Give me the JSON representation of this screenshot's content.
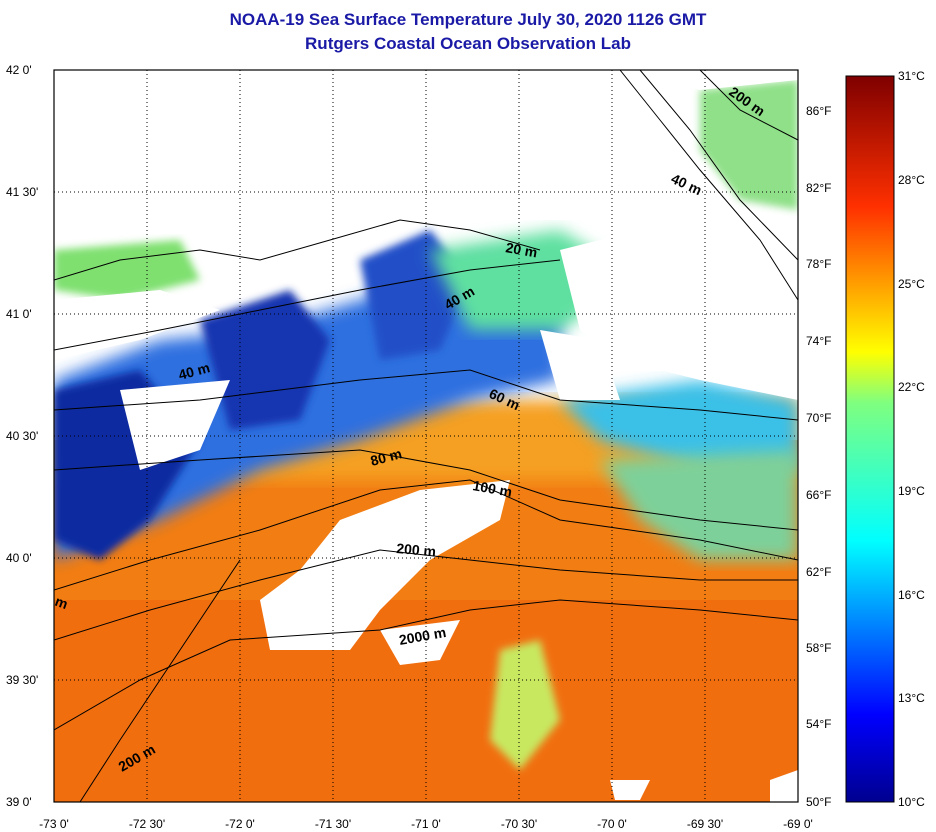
{
  "title": "NOAA-19 Sea Surface Temperature July 30, 2020 1126 GMT",
  "subtitle": "Rutgers Coastal Ocean Observation Lab",
  "lat_labels": [
    "42 0'",
    "41 30'",
    "41 0'",
    "40 30'",
    "40 0'",
    "39 30'",
    "39 0'"
  ],
  "lon_labels": [
    "-73 0'",
    "-72 30'",
    "-72 0'",
    "-71 30'",
    "-71 0'",
    "-70 30'",
    "-70 0'",
    "-69 30'",
    "-69 0'"
  ],
  "f_labels": [
    "86°F",
    "82°F",
    "78°F",
    "74°F",
    "70°F",
    "66°F",
    "62°F",
    "58°F",
    "54°F",
    "50°F"
  ],
  "c_labels": [
    "31°C",
    "28°C",
    "25°C",
    "22°C",
    "19°C",
    "16°C",
    "13°C",
    "10°C"
  ],
  "depth_labels": [
    "200 m",
    "40 m",
    "20 m",
    "40 m",
    "40 m",
    "60 m",
    "80 m",
    "100 m",
    "200 m",
    "2000 m",
    "200 m",
    "m"
  ],
  "colors": {
    "title": "#1a1aa6",
    "cold": "#0a1e96",
    "warm": "#f07a10",
    "land": "#ffffff"
  }
}
